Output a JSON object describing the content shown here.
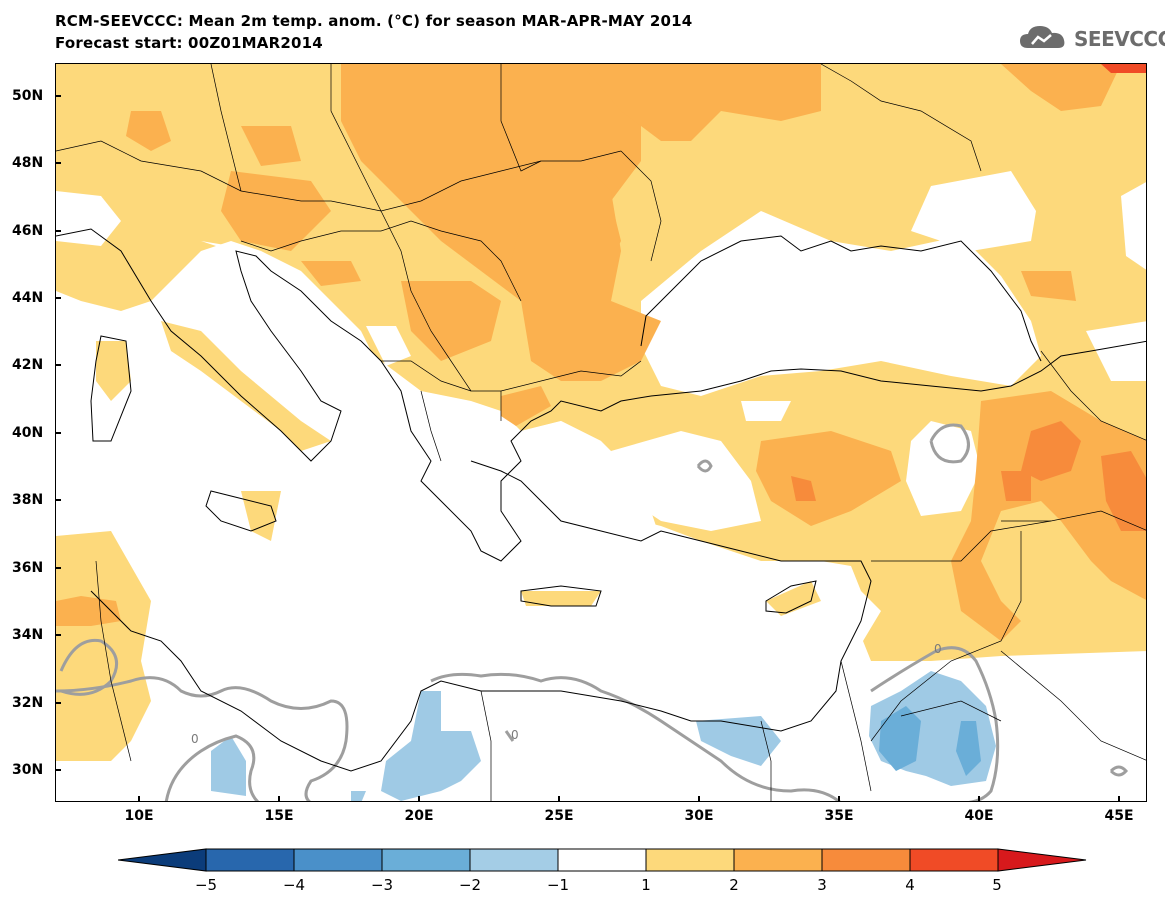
{
  "title": {
    "line1": "RCM-SEEVCCC: Mean 2m temp. anom. (°C) for season MAR-APR-MAY 2014",
    "line2": "Forecast start: 00Z01MAR2014"
  },
  "logo": {
    "text": "SEEVCCC",
    "icon": "cloud-logo-icon"
  },
  "map": {
    "projection": "lat-lon",
    "lon_range": [
      7,
      46
    ],
    "lat_range": [
      29,
      51
    ],
    "lat_labels": [
      "50N",
      "48N",
      "46N",
      "44N",
      "42N",
      "40N",
      "38N",
      "36N",
      "34N",
      "32N",
      "30N"
    ],
    "lon_labels": [
      "10E",
      "15E",
      "20E",
      "25E",
      "30E",
      "35E",
      "40E",
      "45E"
    ],
    "contour_label": "0",
    "colors": {
      "land_water": "#ffffff",
      "anom_1_2": "#fdd97b",
      "anom_2_3": "#fbb14f",
      "anom_3_4": "#f78b3b",
      "anom_4_5": "#f04b26",
      "anom_neg_1_2": "#9fcae5",
      "anom_neg_2_3": "#6aaed8",
      "zero_contour": "#9e9e9e",
      "borders": "#000000"
    }
  },
  "colorbar": {
    "labels": [
      "−5",
      "−4",
      "−3",
      "−2",
      "−1",
      "1",
      "2",
      "3",
      "4",
      "5"
    ],
    "colors": [
      "#0b3c7a",
      "#2867ad",
      "#4a90c9",
      "#6aaed8",
      "#a4cde6",
      "#ffffff",
      "#fdd97b",
      "#fbb14f",
      "#f78b3b",
      "#f04b26",
      "#d7191c"
    ]
  }
}
